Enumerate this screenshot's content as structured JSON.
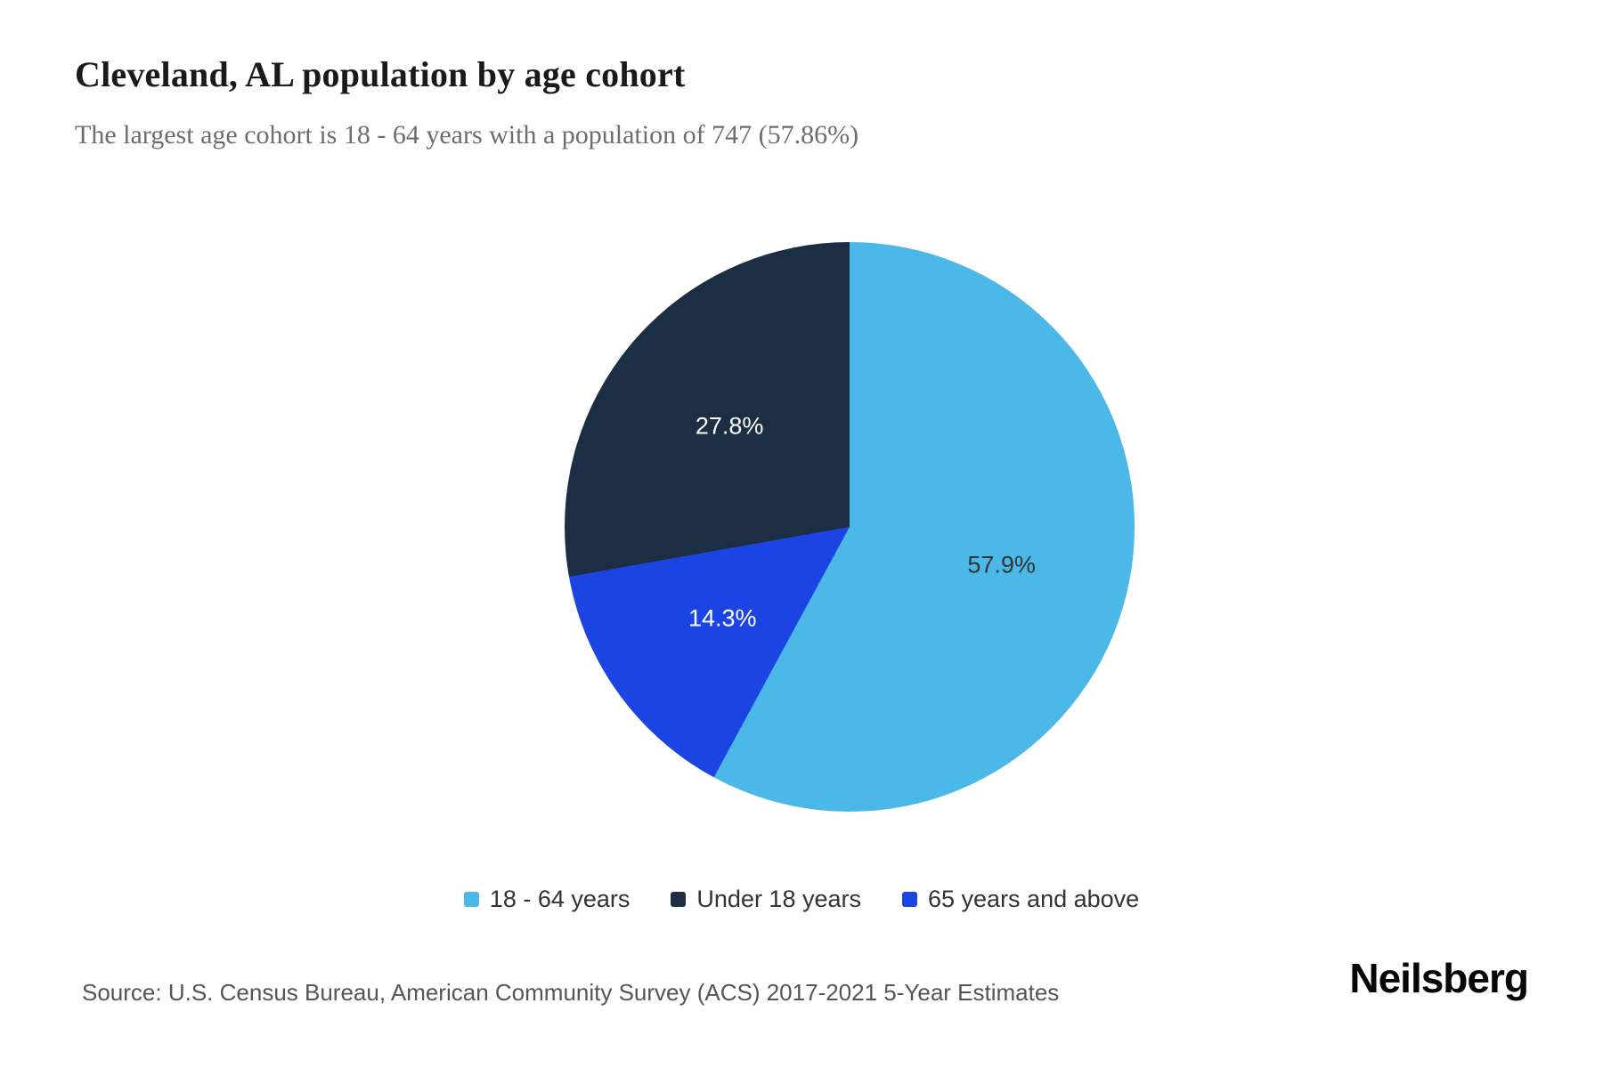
{
  "page": {
    "title": "Cleveland, AL population by age cohort",
    "subtitle": "The largest age cohort is 18 - 64 years with a population of 747 (57.86%)",
    "source": "Source: U.S. Census Bureau, American Community Survey (ACS) 2017-2021 5-Year Estimates",
    "brand": "Neilsberg"
  },
  "chart_data": {
    "type": "pie",
    "title": "Cleveland, AL population by age cohort",
    "subtitle": "The largest age cohort is 18 - 64 years with a population of 747 (57.86%)",
    "start_angle_deg": 0,
    "direction": "clockwise",
    "largest_cohort": {
      "label": "18 - 64 years",
      "population": 747,
      "percent_display": "57.86%"
    },
    "slices": [
      {
        "label": "18 - 64 years",
        "value": 57.9,
        "display": "57.9%",
        "color": "#4bb8e8",
        "label_color": "#333333"
      },
      {
        "label": "65 years and above",
        "value": 14.3,
        "display": "14.3%",
        "color": "#1c44e3",
        "label_color": "#ffffff"
      },
      {
        "label": "Under 18 years",
        "value": 27.8,
        "display": "27.8%",
        "color": "#1b2e44",
        "label_color": "#ffffff"
      }
    ],
    "legend": [
      {
        "label": "18 - 64 years",
        "color": "#4bb8e8"
      },
      {
        "label": "Under 18 years",
        "color": "#1b2e44"
      },
      {
        "label": "65 years and above",
        "color": "#1c44e3"
      }
    ],
    "legend_position": "bottom"
  }
}
